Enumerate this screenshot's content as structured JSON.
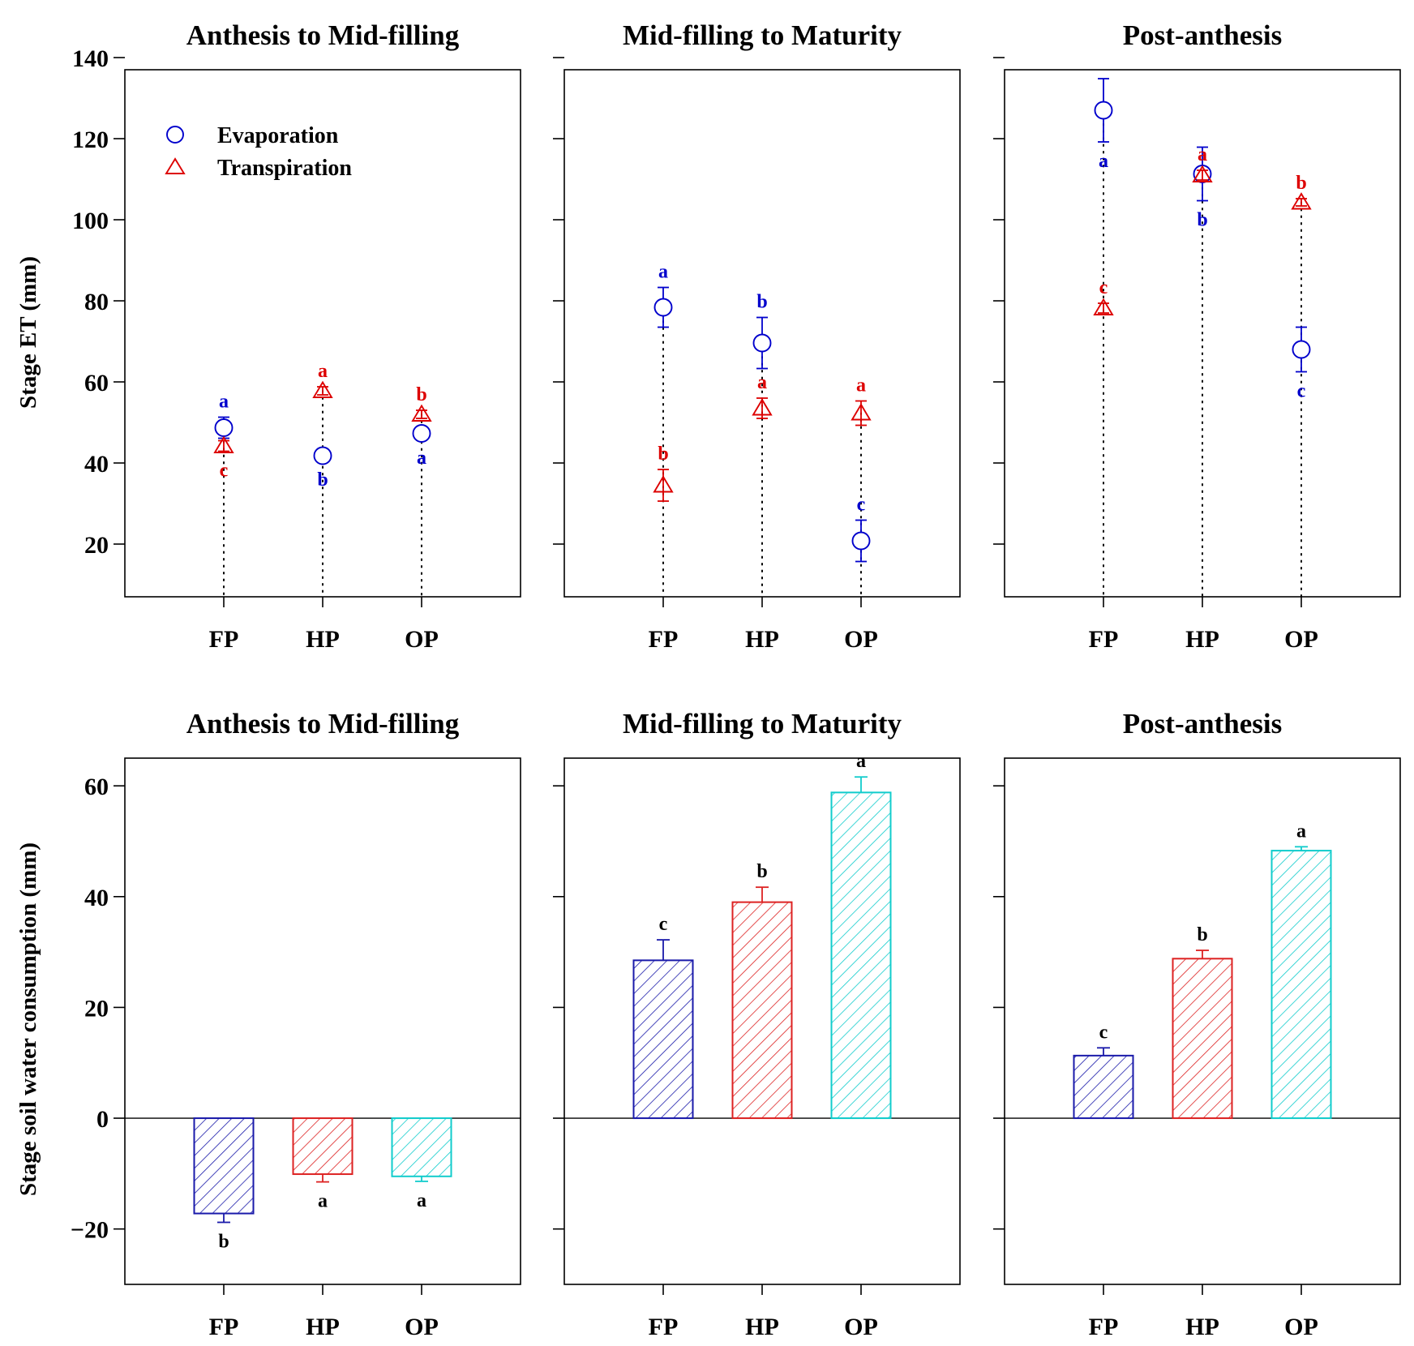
{
  "colors": {
    "evaporation": "#0000cc",
    "transpiration": "#dd0000",
    "fp": "#1a1aaa",
    "hp": "#dd2222",
    "op": "#11cccc",
    "letters_bar": "#000000"
  },
  "chart_data": [
    {
      "type": "scatter",
      "title": "Anthesis to Mid-filling",
      "ylabel": "Stage ET (mm)",
      "ylim": [
        7,
        137
      ],
      "yticks": [
        20,
        40,
        60,
        80,
        100,
        120,
        140
      ],
      "categories": [
        "FP",
        "HP",
        "OP"
      ],
      "legend": {
        "placement": "top-left",
        "entries": [
          "Evaporation",
          "Transpiration"
        ]
      },
      "series": [
        {
          "name": "Evaporation",
          "marker": "circle",
          "values": [
            48.7,
            41.8,
            47.3
          ],
          "errors": [
            2.6,
            1.2,
            1.3
          ],
          "letters": [
            "a",
            "b",
            "a"
          ],
          "letter_pos": [
            "above",
            "below",
            "below"
          ]
        },
        {
          "name": "Transpiration",
          "marker": "triangle",
          "values": [
            44.2,
            57.8,
            52.0
          ],
          "errors": [
            1.3,
            1.0,
            1.0
          ],
          "letters": [
            "c",
            "a",
            "b"
          ],
          "letter_pos": [
            "below",
            "above",
            "above"
          ]
        }
      ]
    },
    {
      "type": "scatter",
      "title": "Mid-filling to Maturity",
      "ylim": [
        7,
        137
      ],
      "yticks": [
        20,
        40,
        60,
        80,
        100,
        120,
        140
      ],
      "categories": [
        "FP",
        "HP",
        "OP"
      ],
      "series": [
        {
          "name": "Evaporation",
          "marker": "circle",
          "values": [
            78.4,
            69.6,
            20.8
          ],
          "errors": [
            4.9,
            6.3,
            5.1
          ],
          "letters": [
            "a",
            "b",
            "c"
          ],
          "letter_pos": [
            "above",
            "above",
            "above"
          ]
        },
        {
          "name": "Transpiration",
          "marker": "triangle",
          "values": [
            34.5,
            53.5,
            52.3
          ],
          "errors": [
            3.9,
            2.5,
            3.0
          ],
          "letters": [
            "b",
            "a",
            "a"
          ],
          "letter_pos": [
            "above",
            "above",
            "above"
          ]
        }
      ]
    },
    {
      "type": "scatter",
      "title": "Post-anthesis",
      "ylim": [
        7,
        137
      ],
      "yticks": [
        20,
        40,
        60,
        80,
        100,
        120,
        140
      ],
      "categories": [
        "FP",
        "HP",
        "OP"
      ],
      "series": [
        {
          "name": "Evaporation",
          "marker": "circle",
          "values": [
            127.0,
            111.3,
            68.0
          ],
          "errors": [
            7.8,
            6.6,
            5.5
          ],
          "letters": [
            "a",
            "b",
            "c"
          ],
          "letter_pos": [
            "below",
            "below",
            "below"
          ]
        },
        {
          "name": "Transpiration",
          "marker": "triangle",
          "values": [
            78.2,
            111.0,
            104.3
          ],
          "errors": [
            1.2,
            1.2,
            0.9
          ],
          "letters": [
            "c",
            "a",
            "b"
          ],
          "letter_pos": [
            "above",
            "above",
            "above"
          ]
        }
      ]
    },
    {
      "type": "bar",
      "title": "Anthesis to Mid-filling",
      "ylabel": "Stage soil water consumption (mm)",
      "ylim": [
        -30,
        65
      ],
      "yticks": [
        -20,
        0,
        20,
        40,
        60
      ],
      "categories": [
        "FP",
        "HP",
        "OP"
      ],
      "values": [
        -17.2,
        -10.1,
        -10.5
      ],
      "errors": [
        1.6,
        1.4,
        0.9
      ],
      "letters": [
        "b",
        "a",
        "a"
      ]
    },
    {
      "type": "bar",
      "title": "Mid-filling to Maturity",
      "ylim": [
        -30,
        65
      ],
      "yticks": [
        -20,
        0,
        20,
        40,
        60
      ],
      "categories": [
        "FP",
        "HP",
        "OP"
      ],
      "values": [
        28.5,
        39.0,
        58.8
      ],
      "errors": [
        3.7,
        2.7,
        2.8
      ],
      "letters": [
        "c",
        "b",
        "a"
      ]
    },
    {
      "type": "bar",
      "title": "Post-anthesis",
      "ylim": [
        -30,
        65
      ],
      "yticks": [
        -20,
        0,
        20,
        40,
        60
      ],
      "categories": [
        "FP",
        "HP",
        "OP"
      ],
      "values": [
        11.3,
        28.8,
        48.3
      ],
      "errors": [
        1.4,
        1.5,
        0.7
      ],
      "letters": [
        "c",
        "b",
        "a"
      ]
    }
  ]
}
